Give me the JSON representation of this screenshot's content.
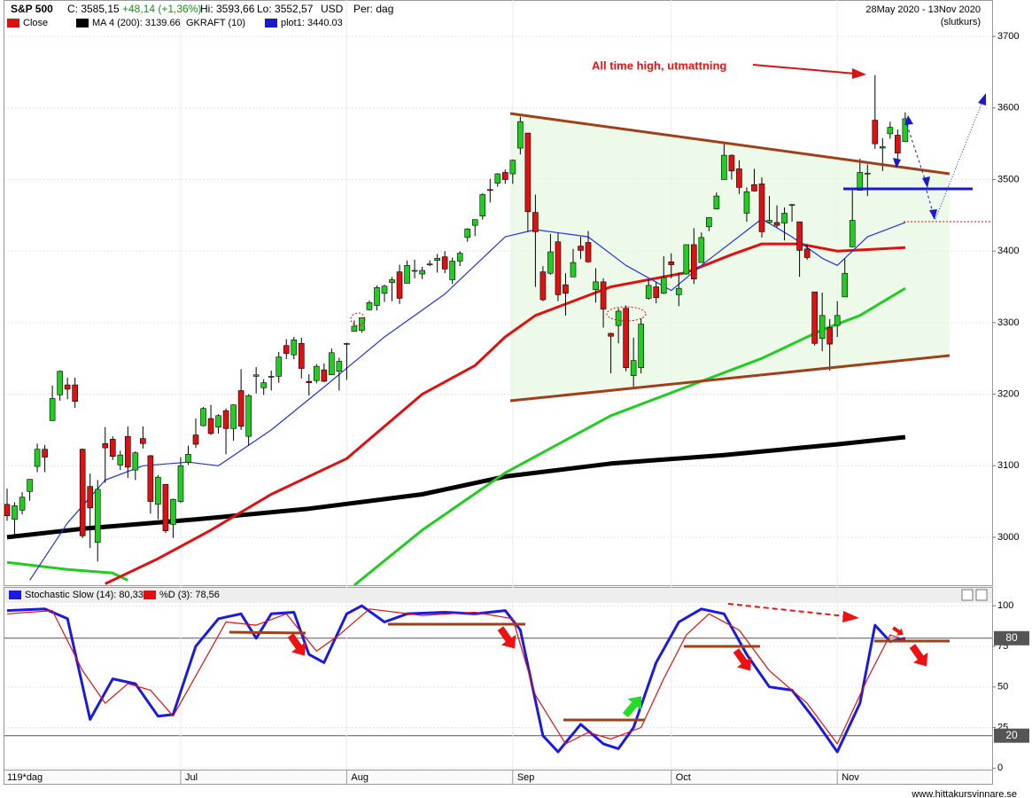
{
  "header": {
    "symbol": "S&P 500",
    "close": "C: 3585,15",
    "change": "+48,14 (+1,36%)",
    "high": "Hi: 3593,66",
    "low": "Lo: 3552,57",
    "currency": "USD",
    "period": "Per: dag",
    "range": "28May 2020 - 13Nov 2020",
    "price_type": "(slutkurs)",
    "legend": [
      {
        "label": "Close",
        "color": "#dd1111"
      },
      {
        "label": "MA 4 (200): 3139.66",
        "color": "#000000"
      },
      {
        "label": "GKRAFT (10)"
      },
      {
        "label": "plot1: 3440.03",
        "color": "#1a1acc"
      }
    ],
    "bars": "119*dag",
    "footer": "www.hittakursvinnare.se"
  },
  "chart_data": [
    {
      "type": "candlestick",
      "annotation": "All time high, utmattning",
      "up_color": "#22cc22",
      "down_color": "#dd1111",
      "ylim": [
        2933,
        3751
      ],
      "yticks": [
        3000,
        3100,
        3200,
        3300,
        3400,
        3500,
        3600,
        3700
      ],
      "grid": true,
      "ohlc": [
        [
          3046,
          3068,
          3023,
          3030
        ],
        [
          3025,
          3049,
          3002,
          3044
        ],
        [
          3038,
          3063,
          3032,
          3056
        ],
        [
          3064,
          3081,
          3051,
          3081
        ],
        [
          3099,
          3131,
          3091,
          3123
        ],
        [
          3123,
          3129,
          3091,
          3112
        ],
        [
          3163,
          3212,
          3163,
          3194
        ],
        [
          3199,
          3233,
          3191,
          3232
        ],
        [
          3213,
          3223,
          3193,
          3207
        ],
        [
          3213,
          3223,
          3181,
          3190
        ],
        [
          3123,
          3124,
          2999,
          3002
        ],
        [
          3071,
          3089,
          2985,
          3041
        ],
        [
          2993,
          3080,
          2966,
          3067
        ],
        [
          3131,
          3154,
          3076,
          3125
        ],
        [
          3137,
          3141,
          3108,
          3113
        ],
        [
          3101,
          3121,
          3094,
          3115
        ],
        [
          3141,
          3155,
          3083,
          3098
        ],
        [
          3094,
          3120,
          3080,
          3118
        ],
        [
          3138,
          3155,
          3124,
          3131
        ],
        [
          3114,
          3115,
          3033,
          3050
        ],
        [
          3046,
          3087,
          3025,
          3084
        ],
        [
          3074,
          3074,
          3006,
          3009
        ],
        [
          3018,
          3054,
          2999,
          3053
        ],
        [
          3050,
          3112,
          3048,
          3100
        ],
        [
          3105,
          3128,
          3101,
          3116
        ],
        [
          3143,
          3166,
          3125,
          3130
        ],
        [
          3156,
          3182,
          3155,
          3180
        ],
        [
          3166,
          3185,
          3143,
          3145
        ],
        [
          3154,
          3172,
          3145,
          3170
        ],
        [
          3177,
          3180,
          3116,
          3152
        ],
        [
          3152,
          3186,
          3135,
          3185
        ],
        [
          3205,
          3235,
          3150,
          3155
        ],
        [
          3141,
          3200,
          3128,
          3198
        ],
        [
          3225,
          3238,
          3201,
          3227
        ],
        [
          3209,
          3221,
          3199,
          3216
        ],
        [
          3225,
          3233,
          3205,
          3225
        ],
        [
          3225,
          3259,
          3216,
          3252
        ],
        [
          3268,
          3277,
          3249,
          3257
        ],
        [
          3255,
          3280,
          3249,
          3276
        ],
        [
          3271,
          3279,
          3222,
          3236
        ],
        [
          3218,
          3228,
          3198,
          3216
        ],
        [
          3219,
          3242,
          3215,
          3239
        ],
        [
          3234,
          3243,
          3217,
          3218
        ],
        [
          3227,
          3264,
          3227,
          3258
        ],
        [
          3232,
          3251,
          3205,
          3246
        ],
        [
          3270,
          3272,
          3220,
          3271
        ],
        [
          3288,
          3303,
          3288,
          3295
        ],
        [
          3289,
          3306,
          3286,
          3307
        ],
        [
          3318,
          3331,
          3317,
          3328
        ],
        [
          3324,
          3352,
          3317,
          3349
        ],
        [
          3341,
          3353,
          3329,
          3351
        ],
        [
          3356,
          3364,
          3330,
          3360
        ],
        [
          3371,
          3381,
          3326,
          3334
        ],
        [
          3355,
          3387,
          3355,
          3380
        ],
        [
          3373,
          3388,
          3362,
          3373
        ],
        [
          3368,
          3378,
          3361,
          3373
        ],
        [
          3381,
          3387,
          3379,
          3382
        ],
        [
          3387,
          3396,
          3370,
          3390
        ],
        [
          3392,
          3400,
          3369,
          3375
        ],
        [
          3360,
          3391,
          3354,
          3386
        ],
        [
          3386,
          3400,
          3379,
          3397
        ],
        [
          3419,
          3432,
          3413,
          3431
        ],
        [
          3436,
          3444,
          3421,
          3444
        ],
        [
          3449,
          3481,
          3444,
          3479
        ],
        [
          3486,
          3501,
          3468,
          3485
        ],
        [
          3495,
          3509,
          3490,
          3508
        ],
        [
          3510,
          3514,
          3494,
          3500
        ],
        [
          3508,
          3528,
          3494,
          3527
        ],
        [
          3544,
          3588,
          3535,
          3581
        ],
        [
          3565,
          3565,
          3427,
          3455
        ],
        [
          3454,
          3479,
          3350,
          3427
        ],
        [
          3371,
          3379,
          3330,
          3332
        ],
        [
          3369,
          3424,
          3367,
          3399
        ],
        [
          3413,
          3425,
          3330,
          3339
        ],
        [
          3353,
          3369,
          3310,
          3341
        ],
        [
          3364,
          3403,
          3364,
          3384
        ],
        [
          3407,
          3420,
          3389,
          3401
        ],
        [
          3412,
          3428,
          3384,
          3385
        ],
        [
          3346,
          3376,
          3328,
          3357
        ],
        [
          3357,
          3362,
          3293,
          3319
        ],
        [
          3285,
          3286,
          3229,
          3281
        ],
        [
          3296,
          3320,
          3271,
          3316
        ],
        [
          3320,
          3324,
          3232,
          3237
        ],
        [
          3226,
          3279,
          3209,
          3247
        ],
        [
          3237,
          3306,
          3229,
          3298
        ],
        [
          3334,
          3360,
          3332,
          3352
        ],
        [
          3350,
          3357,
          3327,
          3335
        ],
        [
          3341,
          3393,
          3340,
          3363
        ],
        [
          3385,
          3397,
          3362,
          3381
        ],
        [
          3339,
          3370,
          3323,
          3348
        ],
        [
          3368,
          3409,
          3367,
          3409
        ],
        [
          3409,
          3432,
          3354,
          3361
        ],
        [
          3384,
          3426,
          3384,
          3419
        ],
        [
          3434,
          3447,
          3428,
          3447
        ],
        [
          3459,
          3482,
          3458,
          3477
        ],
        [
          3500,
          3550,
          3500,
          3534
        ],
        [
          3534,
          3535,
          3500,
          3512
        ],
        [
          3515,
          3527,
          3480,
          3489
        ],
        [
          3453,
          3489,
          3441,
          3483
        ],
        [
          3493,
          3515,
          3483,
          3484
        ],
        [
          3494,
          3503,
          3419,
          3427
        ],
        [
          3440,
          3477,
          3439,
          3443
        ],
        [
          3440,
          3464,
          3433,
          3436
        ],
        [
          3439,
          3461,
          3415,
          3453
        ],
        [
          3464,
          3466,
          3441,
          3465
        ],
        [
          3441,
          3441,
          3364,
          3401
        ],
        [
          3403,
          3409,
          3388,
          3391
        ],
        [
          3343,
          3343,
          3268,
          3271
        ],
        [
          3278,
          3342,
          3260,
          3310
        ],
        [
          3293,
          3305,
          3233,
          3270
        ],
        [
          3296,
          3330,
          3280,
          3310
        ],
        [
          3336,
          3389,
          3336,
          3369
        ],
        [
          3406,
          3486,
          3405,
          3443
        ],
        [
          3485,
          3529,
          3485,
          3510
        ],
        [
          3508,
          3521,
          3477,
          3509
        ],
        [
          3583,
          3646,
          3543,
          3550
        ],
        [
          3544,
          3558,
          3512,
          3546
        ],
        [
          3564,
          3581,
          3557,
          3573
        ],
        [
          3562,
          3570,
          3527,
          3537
        ],
        [
          3553,
          3594,
          3553,
          3585
        ]
      ],
      "series": [
        {
          "color": "#000000",
          "style": "thick",
          "x": [
            0,
            10,
            25,
            40,
            55,
            66,
            80,
            95,
            110,
            119
          ],
          "values": [
            3000,
            3012,
            3025,
            3040,
            3060,
            3085,
            3103,
            3115,
            3130,
            3140
          ]
        },
        {
          "color": "#22cc22",
          "style": "medium",
          "x": [
            0,
            8,
            14,
            16,
            30,
            46,
            55,
            66,
            80,
            90,
            100,
            108,
            113,
            119
          ],
          "values": [
            2965,
            2955,
            2950,
            2940,
            null,
            2933,
            3010,
            3090,
            3170,
            3210,
            3250,
            3290,
            3310,
            3348
          ]
        },
        {
          "color": "#e01010",
          "style": "medium",
          "x": [
            13,
            20,
            27,
            35,
            45,
            55,
            62,
            66,
            70,
            80,
            90,
            96,
            100,
            105,
            110,
            119
          ],
          "values": [
            2935,
            2970,
            3010,
            3060,
            3110,
            3200,
            3240,
            3280,
            3310,
            3350,
            3370,
            3395,
            3410,
            3410,
            3400,
            3405
          ]
        },
        {
          "color": "#2233dd",
          "style": "thin",
          "x": [
            3,
            8,
            13,
            18,
            24,
            28,
            35,
            42,
            50,
            58,
            66,
            70,
            77,
            82,
            88,
            92,
            100,
            104,
            108,
            110,
            114,
            119
          ],
          "values": [
            2940,
            3020,
            3080,
            3100,
            3105,
            3100,
            3150,
            3210,
            3280,
            3340,
            3420,
            3430,
            3420,
            3380,
            3345,
            3380,
            3445,
            3420,
            3390,
            3380,
            3420,
            3440
          ]
        }
      ]
    },
    {
      "type": "line",
      "ylim": [
        -2,
        111
      ],
      "yticks": [
        0,
        25,
        50,
        75,
        100
      ],
      "hlines": [
        80,
        20
      ],
      "xticks": [
        {
          "value": 23,
          "label": "Jul"
        },
        {
          "value": 45,
          "label": "Aug"
        },
        {
          "value": 67,
          "label": "Sep"
        },
        {
          "value": 88,
          "label": "Oct"
        },
        {
          "value": 110,
          "label": "Nov"
        }
      ],
      "series": [
        {
          "name": "Stochastic Slow (14): 80,33",
          "color": "#1a1ae0",
          "style": "medium",
          "x": [
            0,
            5,
            8,
            11,
            14,
            17,
            20,
            22,
            25,
            28,
            31,
            33,
            35,
            38,
            40,
            42,
            45,
            47,
            50,
            53,
            58,
            62,
            66,
            68,
            71,
            73,
            76,
            79,
            81,
            83,
            86,
            89,
            92,
            95,
            98,
            101,
            104,
            107,
            110,
            113,
            115,
            117,
            119
          ],
          "values": [
            97,
            98,
            92,
            30,
            55,
            52,
            32,
            33,
            75,
            92,
            95,
            80,
            95,
            96,
            70,
            65,
            95,
            100,
            90,
            95,
            96,
            95,
            97,
            85,
            20,
            10,
            27,
            15,
            12,
            25,
            65,
            90,
            98,
            95,
            70,
            50,
            48,
            30,
            10,
            40,
            88,
            78,
            80
          ]
        },
        {
          "name": "%D (3): 78,56",
          "color": "#e01010",
          "style": "thin",
          "x": [
            0,
            6,
            10,
            13,
            16,
            19,
            22,
            26,
            29,
            33,
            37,
            41,
            44,
            48,
            55,
            62,
            67,
            70,
            74,
            77,
            80,
            84,
            87,
            90,
            93,
            97,
            101,
            106,
            110,
            114,
            117,
            119
          ],
          "values": [
            95,
            97,
            60,
            40,
            52,
            48,
            32,
            65,
            90,
            88,
            95,
            72,
            82,
            98,
            94,
            96,
            92,
            45,
            15,
            22,
            18,
            25,
            55,
            82,
            95,
            85,
            60,
            40,
            15,
            55,
            82,
            79
          ]
        }
      ]
    }
  ]
}
